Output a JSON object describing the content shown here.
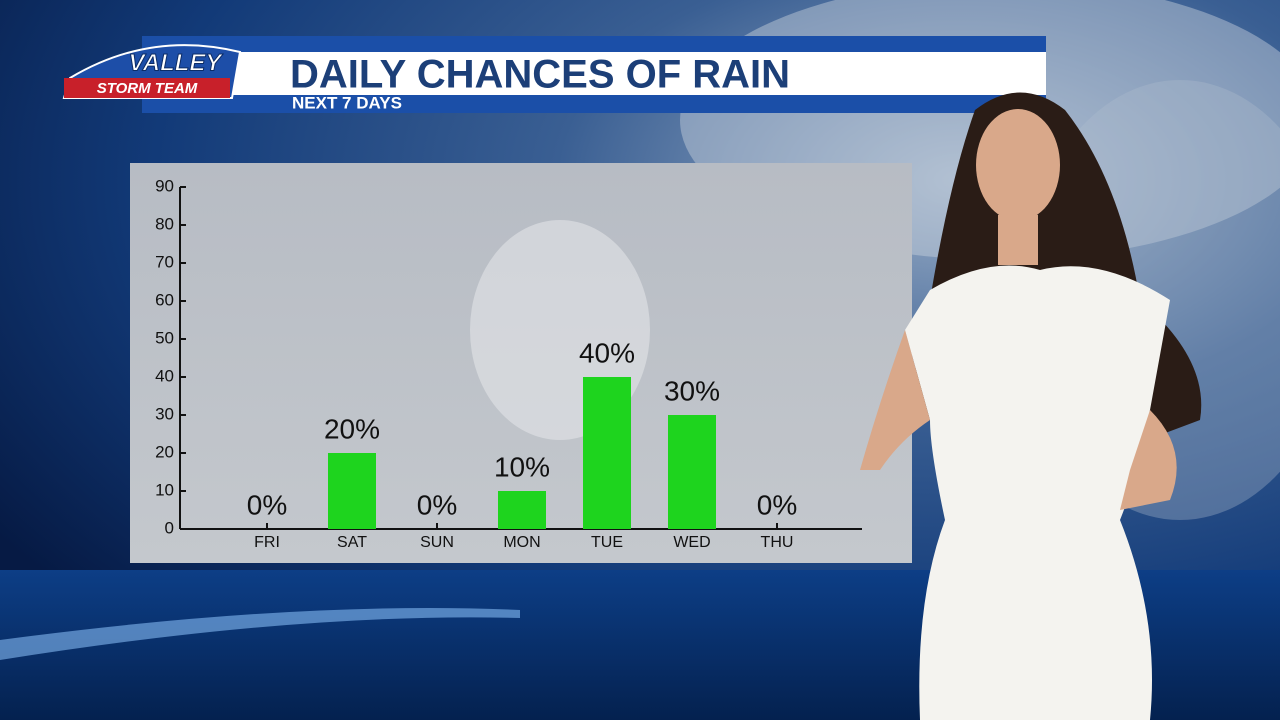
{
  "branding": {
    "logo_top": "VALLEY",
    "logo_bottom": "STORM TEAM"
  },
  "chart_data": {
    "type": "bar",
    "title": "DAILY CHANCES OF RAIN",
    "subtitle": "NEXT 7 DAYS",
    "categories": [
      "FRI",
      "SAT",
      "SUN",
      "MON",
      "TUE",
      "WED",
      "THU"
    ],
    "values": [
      0,
      20,
      0,
      10,
      40,
      30,
      0
    ],
    "value_labels": [
      "0%",
      "20%",
      "0%",
      "10%",
      "40%",
      "30%",
      "0%"
    ],
    "color": "#1ed41e",
    "ylim": [
      0,
      90
    ],
    "yticks": [
      0,
      10,
      20,
      30,
      40,
      50,
      60,
      70,
      80,
      90
    ],
    "grid": false
  }
}
